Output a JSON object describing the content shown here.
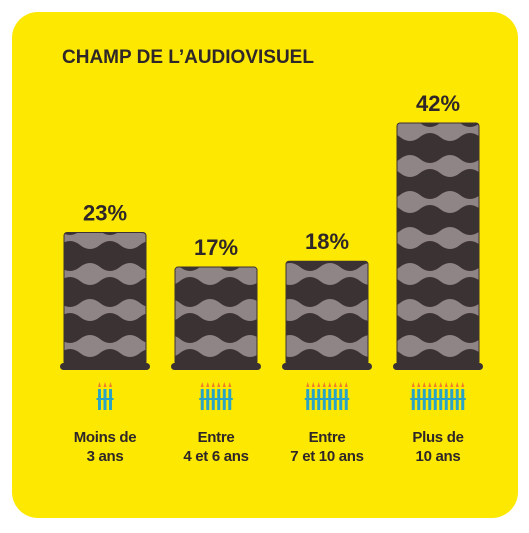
{
  "chart_data": {
    "type": "bar",
    "title": "CHAMP DE L’AUDIOVISUEL",
    "categories": [
      "Moins de\n3 ans",
      "Entre\n4 et 6 ans",
      "Entre\n7 et 10 ans",
      "Plus de\n10 ans"
    ],
    "values": [
      23,
      17,
      18,
      42
    ],
    "value_labels": [
      "23%",
      "17%",
      "18%",
      "42%"
    ],
    "color": "#3b3233"
  }
}
